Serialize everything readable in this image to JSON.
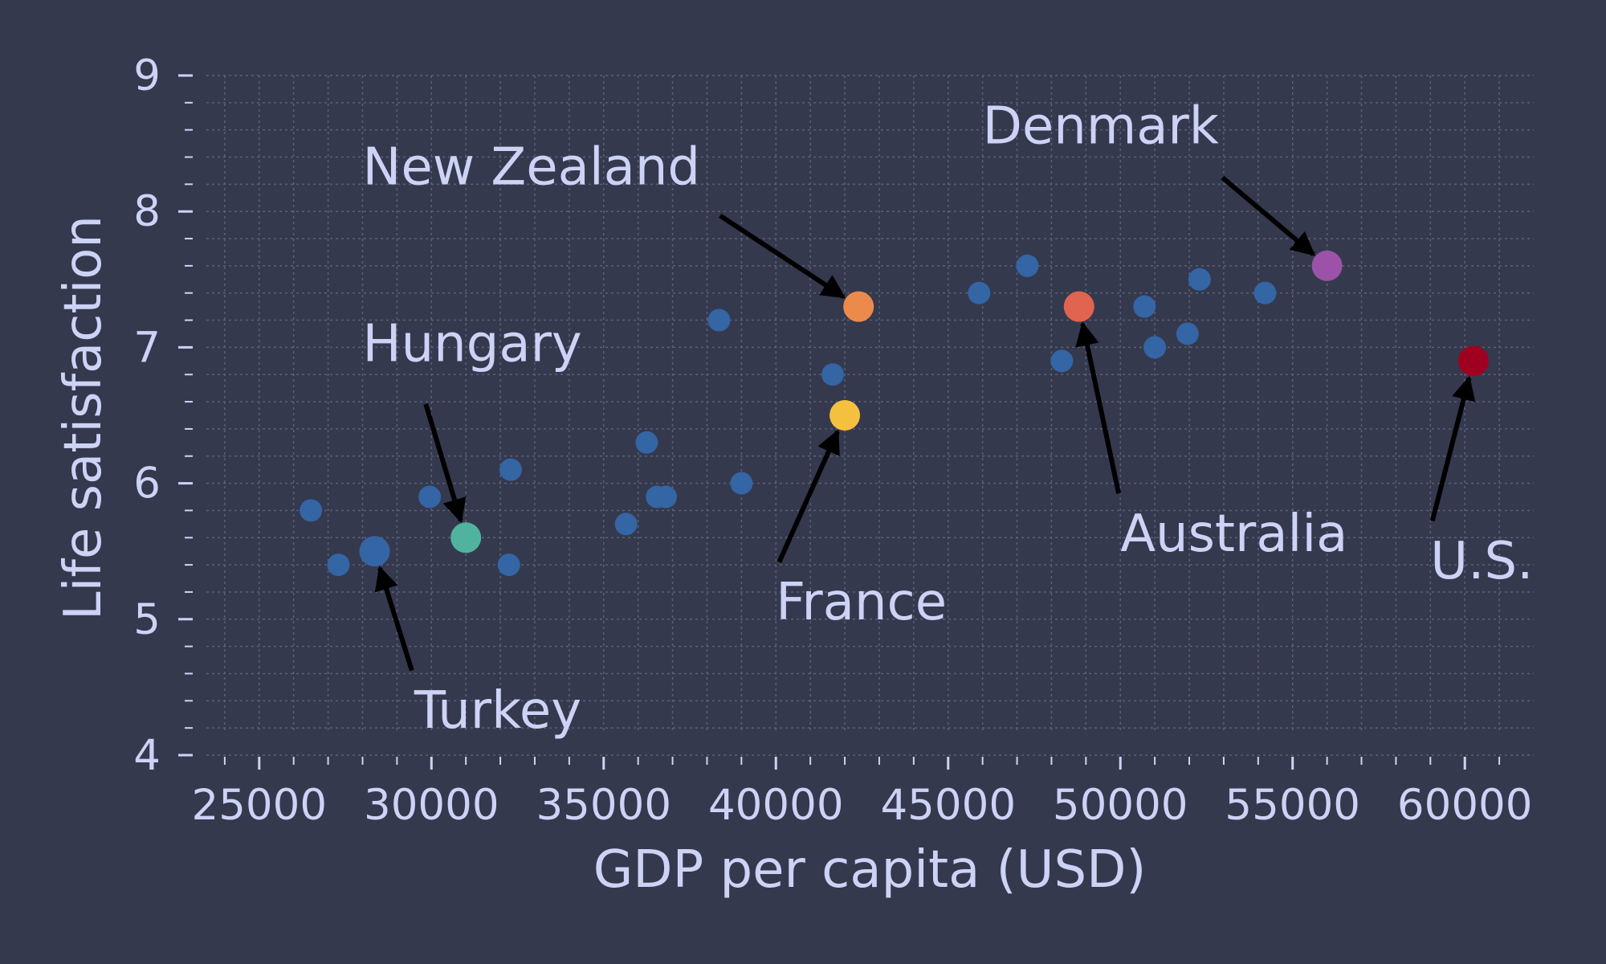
{
  "chart_data": {
    "type": "scatter",
    "title": "",
    "xlabel": "GDP per capita (USD)",
    "ylabel": "Life satisfaction",
    "xlim": [
      23000,
      62000
    ],
    "ylim": [
      4,
      9
    ],
    "xticks": [
      25000,
      30000,
      35000,
      40000,
      45000,
      50000,
      55000,
      60000
    ],
    "yticks": [
      4,
      5,
      6,
      7,
      8,
      9
    ],
    "grid": true,
    "colors": {
      "background": "#35394e",
      "text": "#cdd3f5",
      "points": "#3465a4",
      "arrows": "#000000"
    },
    "points": [
      {
        "x": 26500,
        "y": 5.8
      },
      {
        "x": 27300,
        "y": 5.4
      },
      {
        "x": 28350,
        "y": 5.5
      },
      {
        "x": 29950,
        "y": 5.9
      },
      {
        "x": 31000,
        "y": 5.6
      },
      {
        "x": 32250,
        "y": 5.4
      },
      {
        "x": 32300,
        "y": 6.1
      },
      {
        "x": 35650,
        "y": 5.7
      },
      {
        "x": 36250,
        "y": 6.3
      },
      {
        "x": 36550,
        "y": 5.9
      },
      {
        "x": 36800,
        "y": 5.9
      },
      {
        "x": 38350,
        "y": 7.2
      },
      {
        "x": 39000,
        "y": 6.0
      },
      {
        "x": 41650,
        "y": 6.8
      },
      {
        "x": 42000,
        "y": 6.5
      },
      {
        "x": 42400,
        "y": 7.3
      },
      {
        "x": 45900,
        "y": 7.4
      },
      {
        "x": 47300,
        "y": 7.6
      },
      {
        "x": 48300,
        "y": 6.9
      },
      {
        "x": 48800,
        "y": 7.3
      },
      {
        "x": 50700,
        "y": 7.3
      },
      {
        "x": 51000,
        "y": 7.0
      },
      {
        "x": 51950,
        "y": 7.1
      },
      {
        "x": 52300,
        "y": 7.5
      },
      {
        "x": 54200,
        "y": 7.4
      },
      {
        "x": 56000,
        "y": 7.6
      },
      {
        "x": 60250,
        "y": 6.9
      }
    ],
    "annotations": [
      {
        "label": "Turkey",
        "x": 28350,
        "y": 5.5,
        "text_x": 29500,
        "text_y": 4.2,
        "color": "#3465a4"
      },
      {
        "label": "Hungary",
        "x": 31000,
        "y": 5.6,
        "text_x": 28000,
        "text_y": 6.9,
        "color": "#4fb3a0"
      },
      {
        "label": "France",
        "x": 42000,
        "y": 6.5,
        "text_x": 40000,
        "text_y": 5.0,
        "color": "#f5c040"
      },
      {
        "label": "New Zealand",
        "x": 42400,
        "y": 7.3,
        "text_x": 28000,
        "text_y": 8.2,
        "color": "#ec8a4c"
      },
      {
        "label": "Australia",
        "x": 48800,
        "y": 7.3,
        "text_x": 50000,
        "text_y": 5.5,
        "color": "#e0644f"
      },
      {
        "label": "Denmark",
        "x": 56000,
        "y": 7.6,
        "text_x": 46000,
        "text_y": 8.5,
        "color": "#9b52a8"
      },
      {
        "label": "U.S.",
        "x": 60250,
        "y": 6.9,
        "text_x": 59000,
        "text_y": 5.3,
        "color": "#a0001f"
      }
    ]
  }
}
